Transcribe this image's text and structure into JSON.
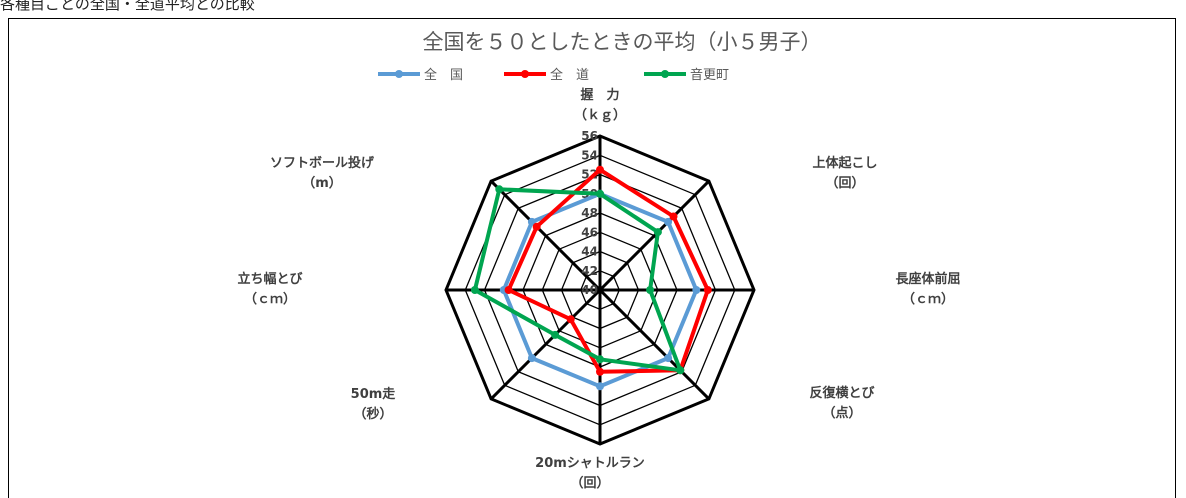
{
  "page": {
    "top_caption": "各種目ごとの全国・全道平均との比較"
  },
  "chart_data": {
    "type": "radar",
    "title": "全国を５０としたときの平均（小５男子）",
    "legend_position": "top",
    "r_range": [
      40,
      56
    ],
    "r_ticks": [
      "40",
      "42",
      "44",
      "46",
      "48",
      "50",
      "52",
      "54",
      "56"
    ],
    "axes": [
      {
        "line1": "握　力",
        "line2": "（ｋｇ）"
      },
      {
        "line1": "上体起こし",
        "line2": "（回）"
      },
      {
        "line1": "長座体前屈",
        "line2": "（ｃｍ）"
      },
      {
        "line1": "反復横とび",
        "line2": "（点）"
      },
      {
        "line1": "20mシャトルラン",
        "line2": "（回）"
      },
      {
        "line1": "50m走",
        "line2": "（秒）"
      },
      {
        "line1": "立ち幅とび",
        "line2": "（ｃｍ）"
      },
      {
        "line1": "ソフトボール投げ",
        "line2": "（m）"
      }
    ],
    "series": [
      {
        "name": "全　国",
        "color": "#5b9bd5",
        "values": [
          50,
          50,
          50,
          50,
          50,
          50,
          50,
          50
        ]
      },
      {
        "name": "全　道",
        "color": "#ff0000",
        "values": [
          52.5,
          50.8,
          51.2,
          51.8,
          48.5,
          44.3,
          49.5,
          49.3
        ]
      },
      {
        "name": "音更町",
        "color": "#00a550",
        "values": [
          50,
          48.5,
          45.2,
          51.8,
          47.2,
          46.6,
          53,
          54.8
        ]
      }
    ]
  }
}
